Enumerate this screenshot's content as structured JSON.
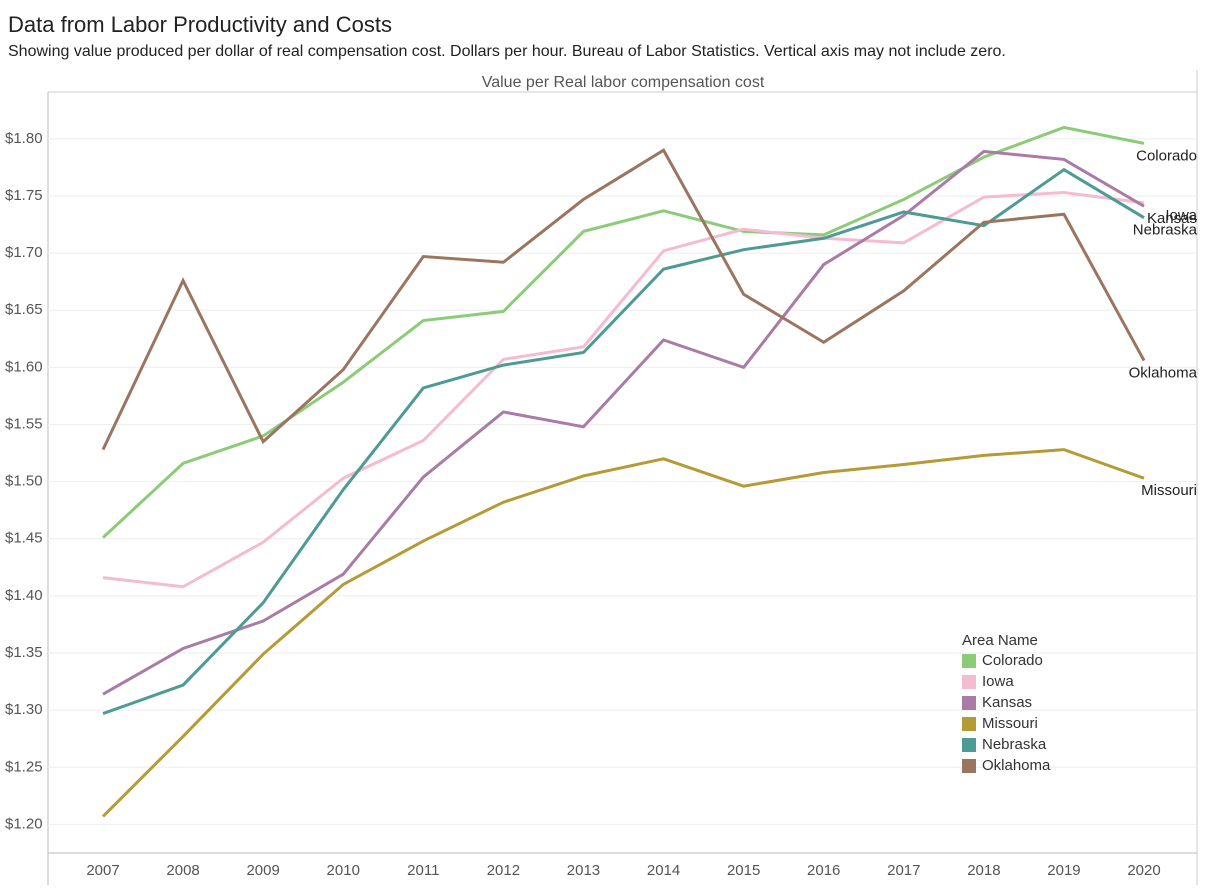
{
  "chart_data": {
    "type": "line",
    "title": "Data from Labor Productivity and Costs",
    "subtitle": "Showing value produced per dollar of real compensation cost. Dollars per hour. Bureau of Labor Statistics. Vertical axis may not include zero.",
    "y_axis_label": "Value per Real labor compensation cost",
    "legend_title": "Area Name",
    "legend_position": "lower right",
    "grid": true,
    "categories": [
      "2007",
      "2008",
      "2009",
      "2010",
      "2011",
      "2012",
      "2013",
      "2014",
      "2015",
      "2016",
      "2017",
      "2018",
      "2019",
      "2020"
    ],
    "ylim": [
      1.175,
      1.841
    ],
    "yticks": [
      {
        "value": 1.2,
        "label": "$1.20"
      },
      {
        "value": 1.25,
        "label": "$1.25"
      },
      {
        "value": 1.3,
        "label": "$1.30"
      },
      {
        "value": 1.35,
        "label": "$1.35"
      },
      {
        "value": 1.4,
        "label": "$1.40"
      },
      {
        "value": 1.45,
        "label": "$1.45"
      },
      {
        "value": 1.5,
        "label": "$1.50"
      },
      {
        "value": 1.55,
        "label": "$1.55"
      },
      {
        "value": 1.6,
        "label": "$1.60"
      },
      {
        "value": 1.65,
        "label": "$1.65"
      },
      {
        "value": 1.7,
        "label": "$1.70"
      },
      {
        "value": 1.75,
        "label": "$1.75"
      },
      {
        "value": 1.8,
        "label": "$1.80"
      }
    ],
    "series": [
      {
        "name": "Colorado",
        "color": "#8ccc78",
        "values": [
          1.451,
          1.516,
          1.54,
          1.587,
          1.641,
          1.649,
          1.719,
          1.737,
          1.719,
          1.716,
          1.747,
          1.784,
          1.81,
          1.796
        ]
      },
      {
        "name": "Iowa",
        "color": "#f4bcd0",
        "values": [
          1.416,
          1.408,
          1.447,
          1.503,
          1.536,
          1.607,
          1.618,
          1.702,
          1.721,
          1.713,
          1.709,
          1.749,
          1.753,
          1.744
        ]
      },
      {
        "name": "Kansas",
        "color": "#a97ba6",
        "values": [
          1.314,
          1.354,
          1.378,
          1.419,
          1.504,
          1.561,
          1.548,
          1.624,
          1.6,
          1.69,
          1.733,
          1.789,
          1.782,
          1.741
        ]
      },
      {
        "name": "Missouri",
        "color": "#b59a36",
        "values": [
          1.207,
          1.277,
          1.349,
          1.41,
          1.448,
          1.482,
          1.505,
          1.52,
          1.496,
          1.508,
          1.515,
          1.523,
          1.528,
          1.503
        ]
      },
      {
        "name": "Nebraska",
        "color": "#4e9a94",
        "values": [
          1.297,
          1.322,
          1.394,
          1.493,
          1.582,
          1.602,
          1.613,
          1.686,
          1.703,
          1.713,
          1.736,
          1.724,
          1.773,
          1.731
        ]
      },
      {
        "name": "Oklahoma",
        "color": "#9a7560",
        "values": [
          1.528,
          1.676,
          1.535,
          1.598,
          1.697,
          1.692,
          1.747,
          1.79,
          1.664,
          1.622,
          1.667,
          1.727,
          1.734,
          1.606
        ]
      }
    ]
  }
}
